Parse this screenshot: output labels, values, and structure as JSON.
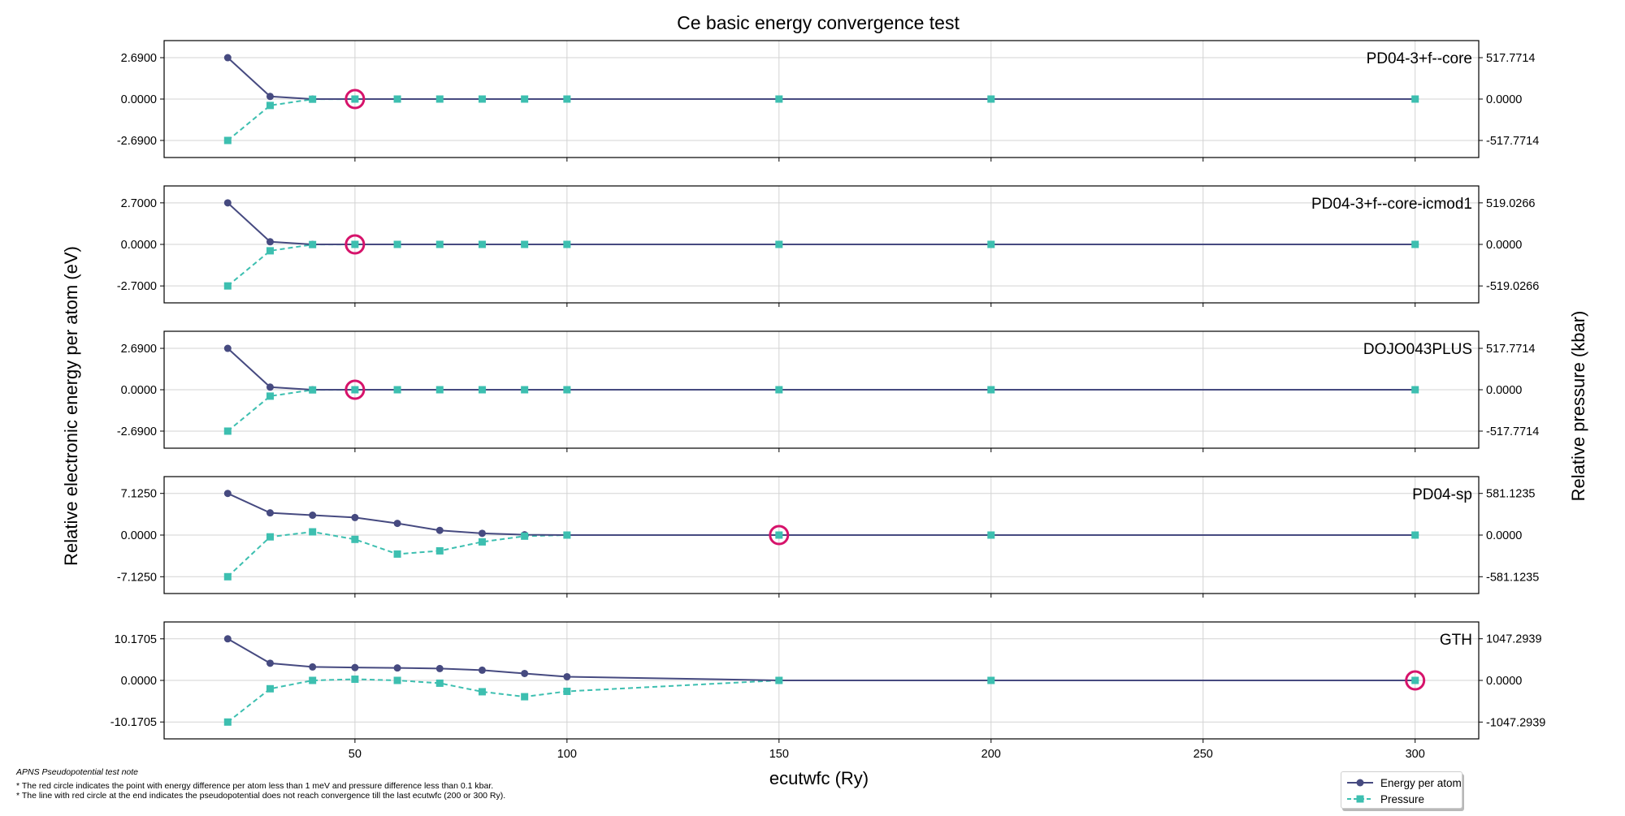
{
  "title": "Ce basic energy convergence test",
  "xlabel": "ecutwfc (Ry)",
  "ylabel_left": "Relative electronic energy per atom (eV)",
  "ylabel_right": "Relative pressure (kbar)",
  "notes": {
    "heading": "APNS Pseudopotential test note",
    "line1": "* The red circle indicates the point with energy difference per atom less than 1 meV and pressure difference less than 0.1 kbar.",
    "line2": "* The line with red circle at the end indicates the pseudopotential does not reach convergence till the last ecutwfc (200 or 300 Ry)."
  },
  "legend": {
    "energy": "Energy per atom",
    "pressure": "Pressure"
  },
  "colors": {
    "energy": "#464a80",
    "pressure": "#3dbfb0",
    "highlight": "#d6136b",
    "grid": "#d3d3d3"
  },
  "chart_data": {
    "type": "line",
    "x_ticks": [
      50,
      100,
      150,
      200,
      250,
      300
    ],
    "xlim": [
      5,
      315
    ],
    "grid": true,
    "legend_position": "bottom-right",
    "panels": [
      {
        "label": "PD04-3+f--core",
        "left_ticks": [
          "2.6900",
          "0.0000",
          "-2.6900"
        ],
        "right_ticks": [
          "517.7714",
          "0.0000",
          "-517.7714"
        ],
        "y_scale": 2.69,
        "p_scale": 517.7714,
        "ylim": [
          -3.8,
          3.8
        ],
        "plim": [
          -731.3,
          731.3
        ],
        "x": [
          20,
          30,
          40,
          50,
          60,
          70,
          80,
          90,
          100,
          150,
          200,
          300
        ],
        "energy": [
          2.69,
          0.17,
          0.0,
          0.0,
          0.0,
          0.0,
          0.0,
          0.0,
          0.0,
          0.0,
          0.0,
          0.0
        ],
        "pressure": [
          -517.77,
          -80,
          -2,
          0,
          0,
          0,
          0,
          0,
          0,
          0,
          0,
          0
        ],
        "converged_x": 50
      },
      {
        "label": "PD04-3+f--core-icmod1",
        "left_ticks": [
          "2.7000",
          "0.0000",
          "-2.7000"
        ],
        "right_ticks": [
          "519.0266",
          "0.0000",
          "-519.0266"
        ],
        "y_scale": 2.7,
        "p_scale": 519.0266,
        "ylim": [
          -3.8,
          3.8
        ],
        "plim": [
          -730.5,
          730.5
        ],
        "x": [
          20,
          30,
          40,
          50,
          60,
          70,
          80,
          90,
          100,
          150,
          200,
          300
        ],
        "energy": [
          2.7,
          0.17,
          0.0,
          0.0,
          0.0,
          0.0,
          0.0,
          0.0,
          0.0,
          0.0,
          0.0,
          0.0
        ],
        "pressure": [
          -519.03,
          -80,
          -2,
          0,
          0,
          0,
          0,
          0,
          0,
          0,
          0,
          0
        ],
        "converged_x": 50
      },
      {
        "label": "DOJO043PLUS",
        "left_ticks": [
          "2.6900",
          "0.0000",
          "-2.6900"
        ],
        "right_ticks": [
          "517.7714",
          "0.0000",
          "-517.7714"
        ],
        "y_scale": 2.69,
        "p_scale": 517.7714,
        "ylim": [
          -3.8,
          3.8
        ],
        "plim": [
          -731.3,
          731.3
        ],
        "x": [
          20,
          30,
          40,
          50,
          60,
          70,
          80,
          90,
          100,
          150,
          200,
          300
        ],
        "energy": [
          2.69,
          0.17,
          0.0,
          0.0,
          0.0,
          0.0,
          0.0,
          0.0,
          0.0,
          0.0,
          0.0,
          0.0
        ],
        "pressure": [
          -517.77,
          -80,
          -2,
          0,
          0,
          0,
          0,
          0,
          0,
          0,
          0,
          0
        ],
        "converged_x": 50
      },
      {
        "label": "PD04-sp",
        "left_ticks": [
          "7.1250",
          "0.0000",
          "-7.1250"
        ],
        "right_ticks": [
          "581.1235",
          "0.0000",
          "-581.1235"
        ],
        "y_scale": 7.125,
        "p_scale": 581.1235,
        "ylim": [
          -10.0,
          10.0
        ],
        "plim": [
          -815.6,
          815.6
        ],
        "x": [
          20,
          30,
          40,
          50,
          60,
          70,
          80,
          90,
          100,
          150,
          200,
          300
        ],
        "energy": [
          7.125,
          3.8,
          3.4,
          3.0,
          2.0,
          0.8,
          0.3,
          0.05,
          0.0,
          0.0,
          0.0,
          0.0
        ],
        "pressure": [
          -581.12,
          -25,
          45,
          -60,
          -265,
          -220,
          -95,
          -15,
          0,
          0,
          0,
          0
        ],
        "converged_x": 150
      },
      {
        "label": "GTH",
        "left_ticks": [
          "10.1705",
          "0.0000",
          "-10.1705"
        ],
        "right_ticks": [
          "1047.2939",
          "0.0000",
          "-1047.2939"
        ],
        "y_scale": 10.1705,
        "p_scale": 1047.2939,
        "ylim": [
          -14.3,
          14.3
        ],
        "plim": [
          -1470.0,
          1470.0
        ],
        "x": [
          20,
          30,
          40,
          50,
          60,
          70,
          80,
          90,
          100,
          150,
          200,
          300
        ],
        "energy": [
          10.1705,
          4.2,
          3.3,
          3.15,
          3.05,
          2.9,
          2.5,
          1.7,
          0.9,
          0.0,
          0.0,
          0.0
        ],
        "pressure": [
          -1047.29,
          -210,
          0,
          30,
          0,
          -70,
          -285,
          -410,
          -275,
          0,
          0,
          0
        ],
        "converged_x": 300
      }
    ]
  }
}
